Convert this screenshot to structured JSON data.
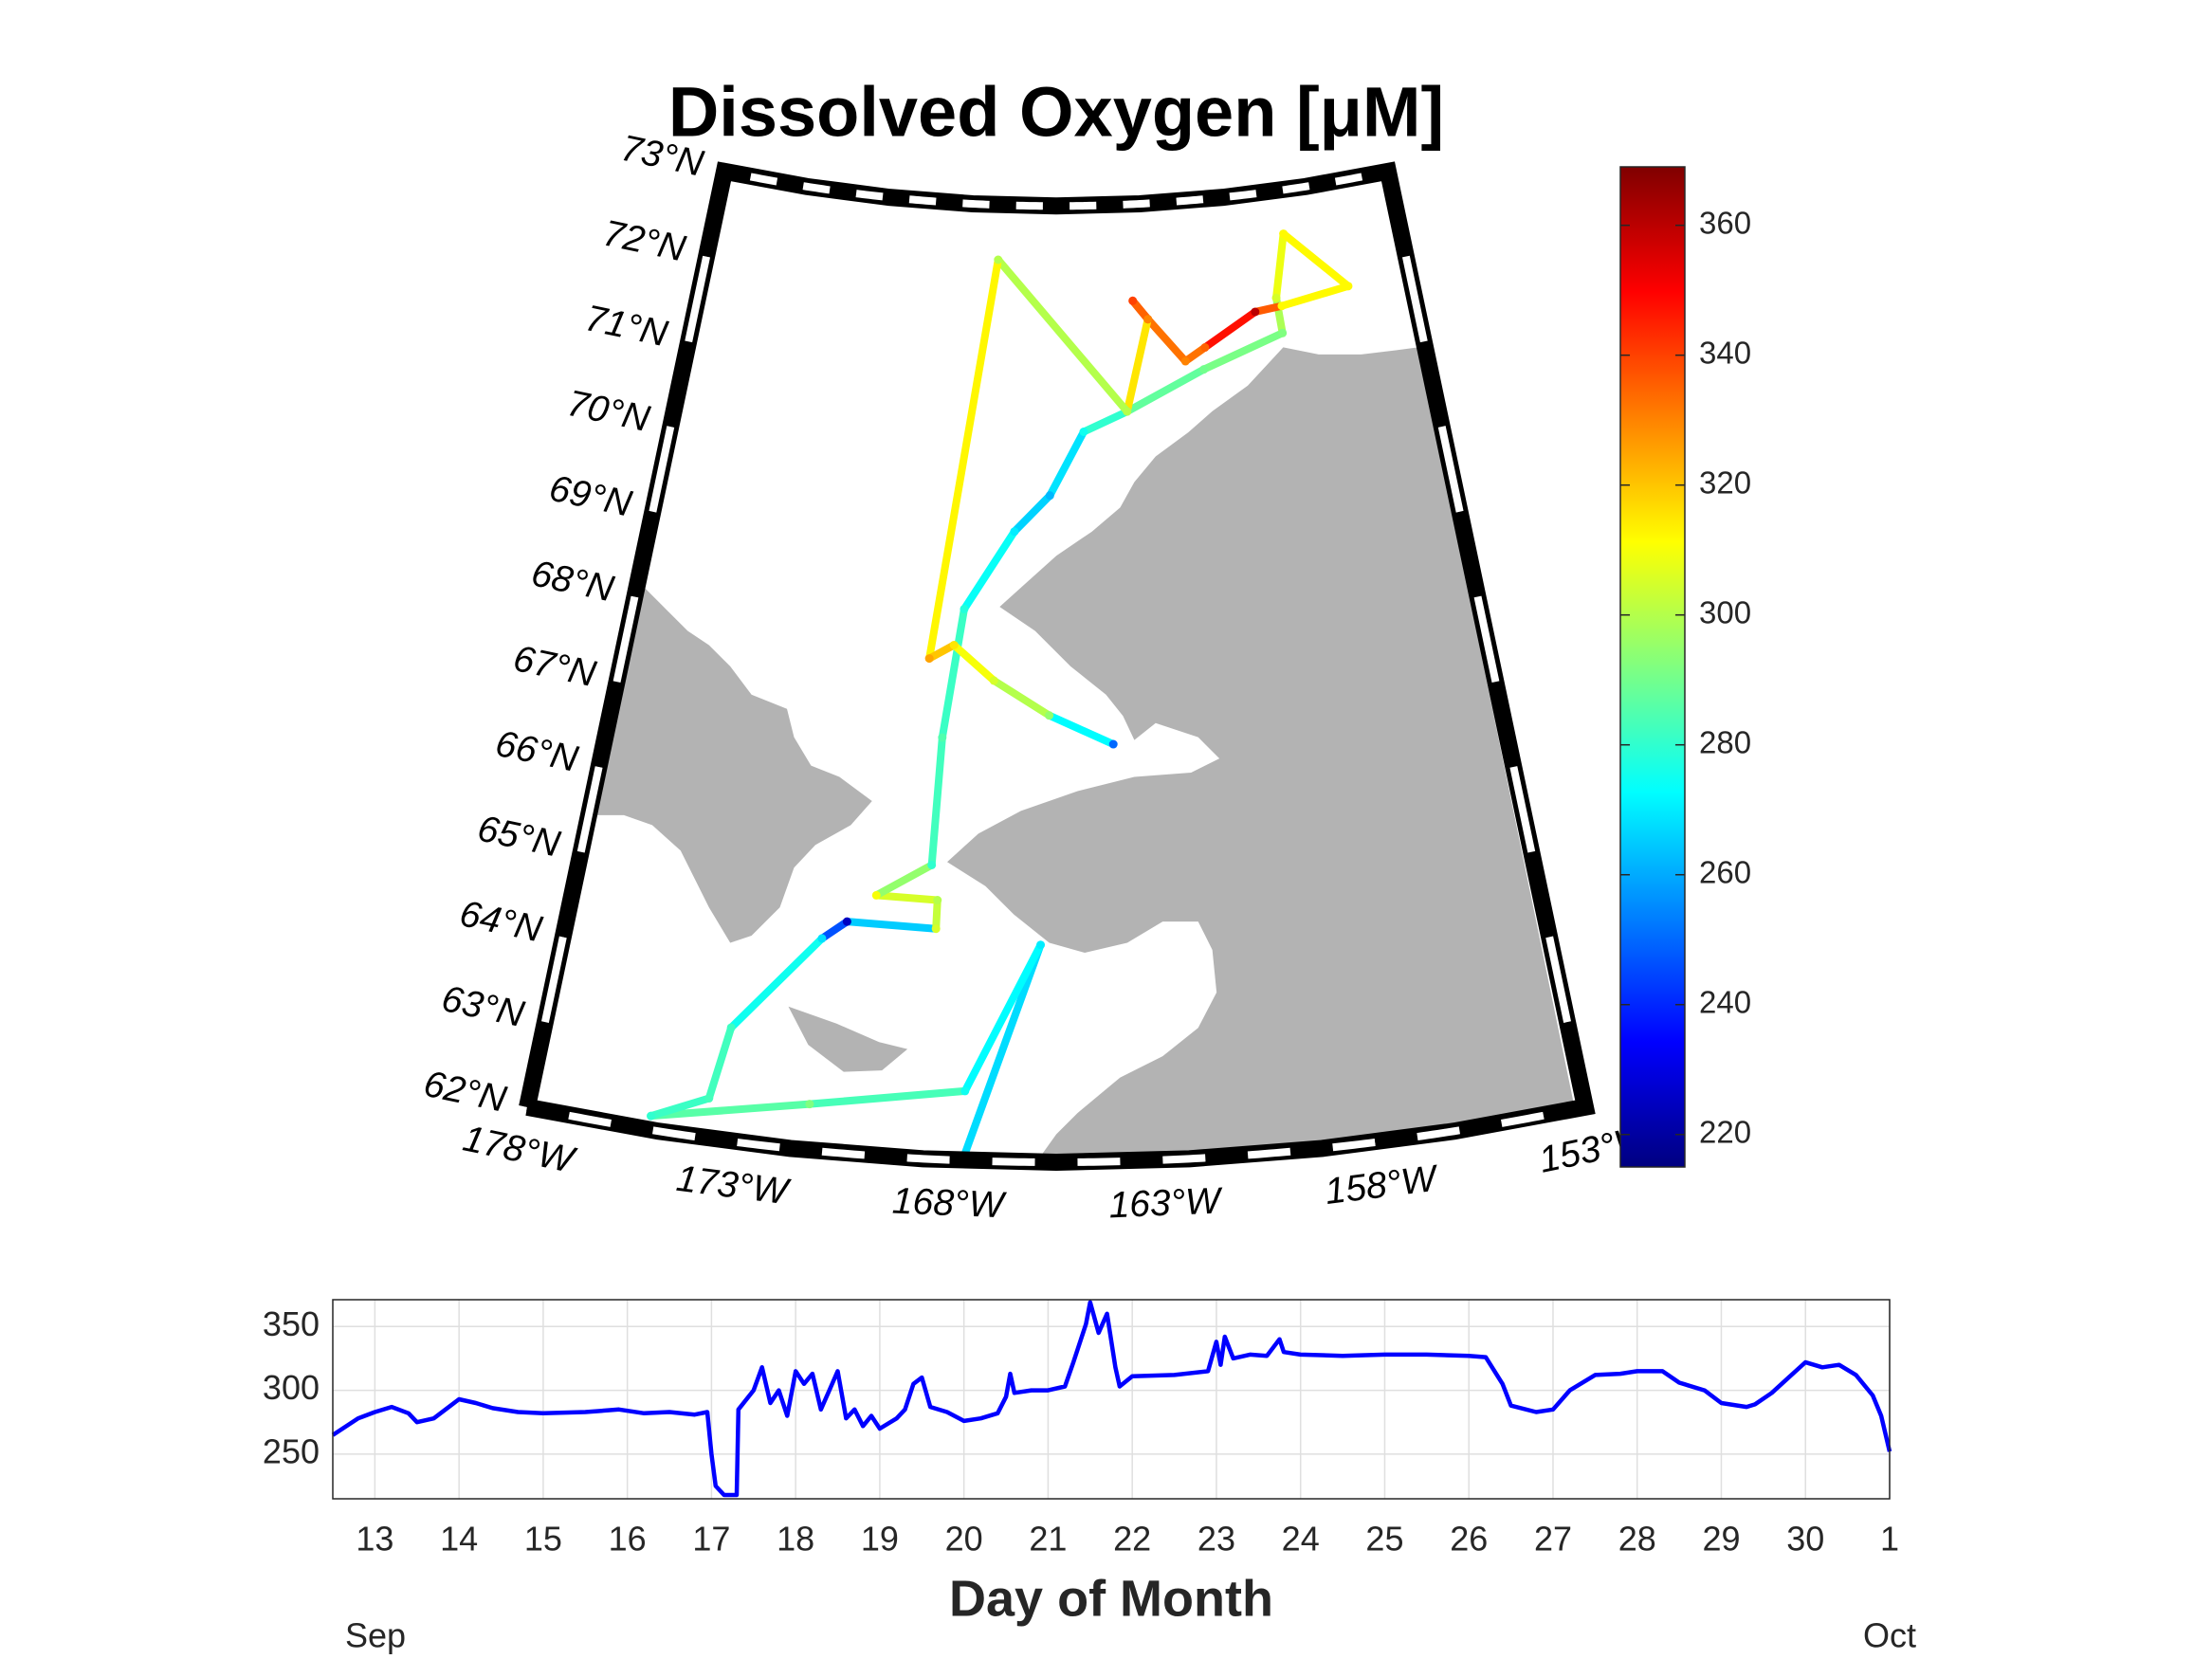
{
  "chart_data": [
    {
      "type": "track_map",
      "title": "Dissolved Oxygen [μM]",
      "lon": [
        -167.7,
        -165.9,
        -167.7,
        -171.4,
        -175.1,
        -173.8,
        -173.5,
        -171.5,
        -170.9,
        -168.6,
        -168.6,
        -170.2,
        -168.8,
        -168.7,
        -168.25,
        -166.8,
        -165.7,
        -164.6,
        -163.15,
        -160.5,
        -157.7,
        -157.76,
        -157.2,
        -155.2,
        -157.6,
        -158.55,
        -160.4,
        -161.1,
        -162.3,
        -162.8,
        -162.3,
        -163.15,
        -167.6,
        -169.2,
        -168.5,
        -167.3,
        -165.7,
        -163.9
      ],
      "lat": [
        62.0,
        64.5,
        62.8,
        62.53,
        62.16,
        62.46,
        63.3,
        64.44,
        64.66,
        64.65,
        64.98,
        64.99,
        65.38,
        66.85,
        68.34,
        69.25,
        69.67,
        70.4,
        70.62,
        71.05,
        71.37,
        71.78,
        72.5,
        71.79,
        71.68,
        71.65,
        71.3,
        71.16,
        71.67,
        71.89,
        71.67,
        70.62,
        72.37,
        67.75,
        67.92,
        67.53,
        67.14,
        66.8
      ],
      "values": [
        265,
        270,
        275,
        292,
        280,
        283,
        282,
        268,
        225,
        305,
        300,
        310,
        280,
        285,
        278,
        270,
        262,
        275,
        285,
        290,
        292,
        305,
        312,
        312,
        312,
        360,
        335,
        330,
        335,
        340,
        330,
        300,
        300,
        325,
        315,
        305,
        295,
        250
      ],
      "colormap": "jet",
      "clim": [
        215,
        369
      ],
      "cticks": [
        220,
        240,
        260,
        280,
        300,
        320,
        340,
        360
      ],
      "xlim": [
        -178,
        -153
      ],
      "ylim": [
        62,
        73
      ],
      "xticks": [
        {
          "value": -178,
          "label": "178°W"
        },
        {
          "value": -173,
          "label": "173°W"
        },
        {
          "value": -168,
          "label": "168°W"
        },
        {
          "value": -163,
          "label": "163°W"
        },
        {
          "value": -158,
          "label": "158°W"
        },
        {
          "value": -153,
          "label": "153°W"
        }
      ],
      "yticks": [
        {
          "value": 62,
          "label": "62°N"
        },
        {
          "value": 63,
          "label": "63°N"
        },
        {
          "value": 64,
          "label": "64°N"
        },
        {
          "value": 65,
          "label": "65°N"
        },
        {
          "value": 66,
          "label": "66°N"
        },
        {
          "value": 67,
          "label": "67°N"
        },
        {
          "value": 68,
          "label": "68°N"
        },
        {
          "value": 69,
          "label": "69°N"
        },
        {
          "value": 70,
          "label": "70°N"
        },
        {
          "value": 71,
          "label": "71°N"
        },
        {
          "value": 72,
          "label": "72°N"
        },
        {
          "value": 73,
          "label": "73°N"
        }
      ]
    },
    {
      "type": "line",
      "xlabel": "Day of Month",
      "x_start_label": "Sep",
      "x_end_label": "Oct",
      "x": [
        12.5,
        12.8,
        13.0,
        13.2,
        13.4,
        13.5,
        13.7,
        13.9,
        14.0,
        14.2,
        14.4,
        14.7,
        15.0,
        15.5,
        15.9,
        16.2,
        16.5,
        16.8,
        16.95,
        17.0,
        17.05,
        17.15,
        17.3,
        17.32,
        17.5,
        17.6,
        17.7,
        17.8,
        17.9,
        18.0,
        18.1,
        18.2,
        18.3,
        18.4,
        18.5,
        18.6,
        18.7,
        18.8,
        18.9,
        19.0,
        19.2,
        19.3,
        19.4,
        19.5,
        19.6,
        19.8,
        20.0,
        20.2,
        20.4,
        20.5,
        20.55,
        20.6,
        20.8,
        21.0,
        21.2,
        21.3,
        21.45,
        21.5,
        21.6,
        21.7,
        21.8,
        21.85,
        22.0,
        22.5,
        22.9,
        23.0,
        23.05,
        23.1,
        23.2,
        23.4,
        23.6,
        23.75,
        23.8,
        24.0,
        24.5,
        25.0,
        25.5,
        26.0,
        26.2,
        26.4,
        26.5,
        26.8,
        27.0,
        27.2,
        27.5,
        27.8,
        28.0,
        28.3,
        28.5,
        28.8,
        29.0,
        29.3,
        29.4,
        29.6,
        29.8,
        30.0,
        30.2,
        30.4,
        30.6,
        30.8,
        30.9,
        31.0
      ],
      "values": [
        265,
        278,
        283,
        287,
        282,
        275,
        278,
        288,
        293,
        290,
        286,
        283,
        282,
        283,
        285,
        282,
        283,
        281,
        283,
        250,
        225,
        218,
        218,
        285,
        300,
        318,
        290,
        300,
        280,
        315,
        305,
        313,
        285,
        300,
        315,
        278,
        285,
        272,
        280,
        270,
        278,
        285,
        305,
        310,
        287,
        283,
        276,
        278,
        282,
        295,
        313,
        298,
        300,
        300,
        303,
        322,
        352,
        369,
        345,
        360,
        318,
        303,
        311,
        312,
        315,
        338,
        320,
        342,
        325,
        328,
        327,
        340,
        330,
        328,
        327,
        328,
        328,
        327,
        326,
        305,
        288,
        283,
        285,
        300,
        312,
        313,
        315,
        315,
        306,
        300,
        290,
        287,
        289,
        298,
        310,
        322,
        318,
        320,
        312,
        296,
        280,
        252
      ],
      "color": "#0000ff",
      "xlim": [
        12.5,
        31
      ],
      "ylim": [
        215,
        371
      ],
      "xticks": [
        13,
        14,
        15,
        16,
        17,
        18,
        19,
        20,
        21,
        22,
        23,
        24,
        25,
        26,
        27,
        28,
        29,
        30,
        {
          "value": 31,
          "label": "1"
        }
      ],
      "yticks": [
        250,
        300,
        350
      ],
      "grid": true
    }
  ]
}
